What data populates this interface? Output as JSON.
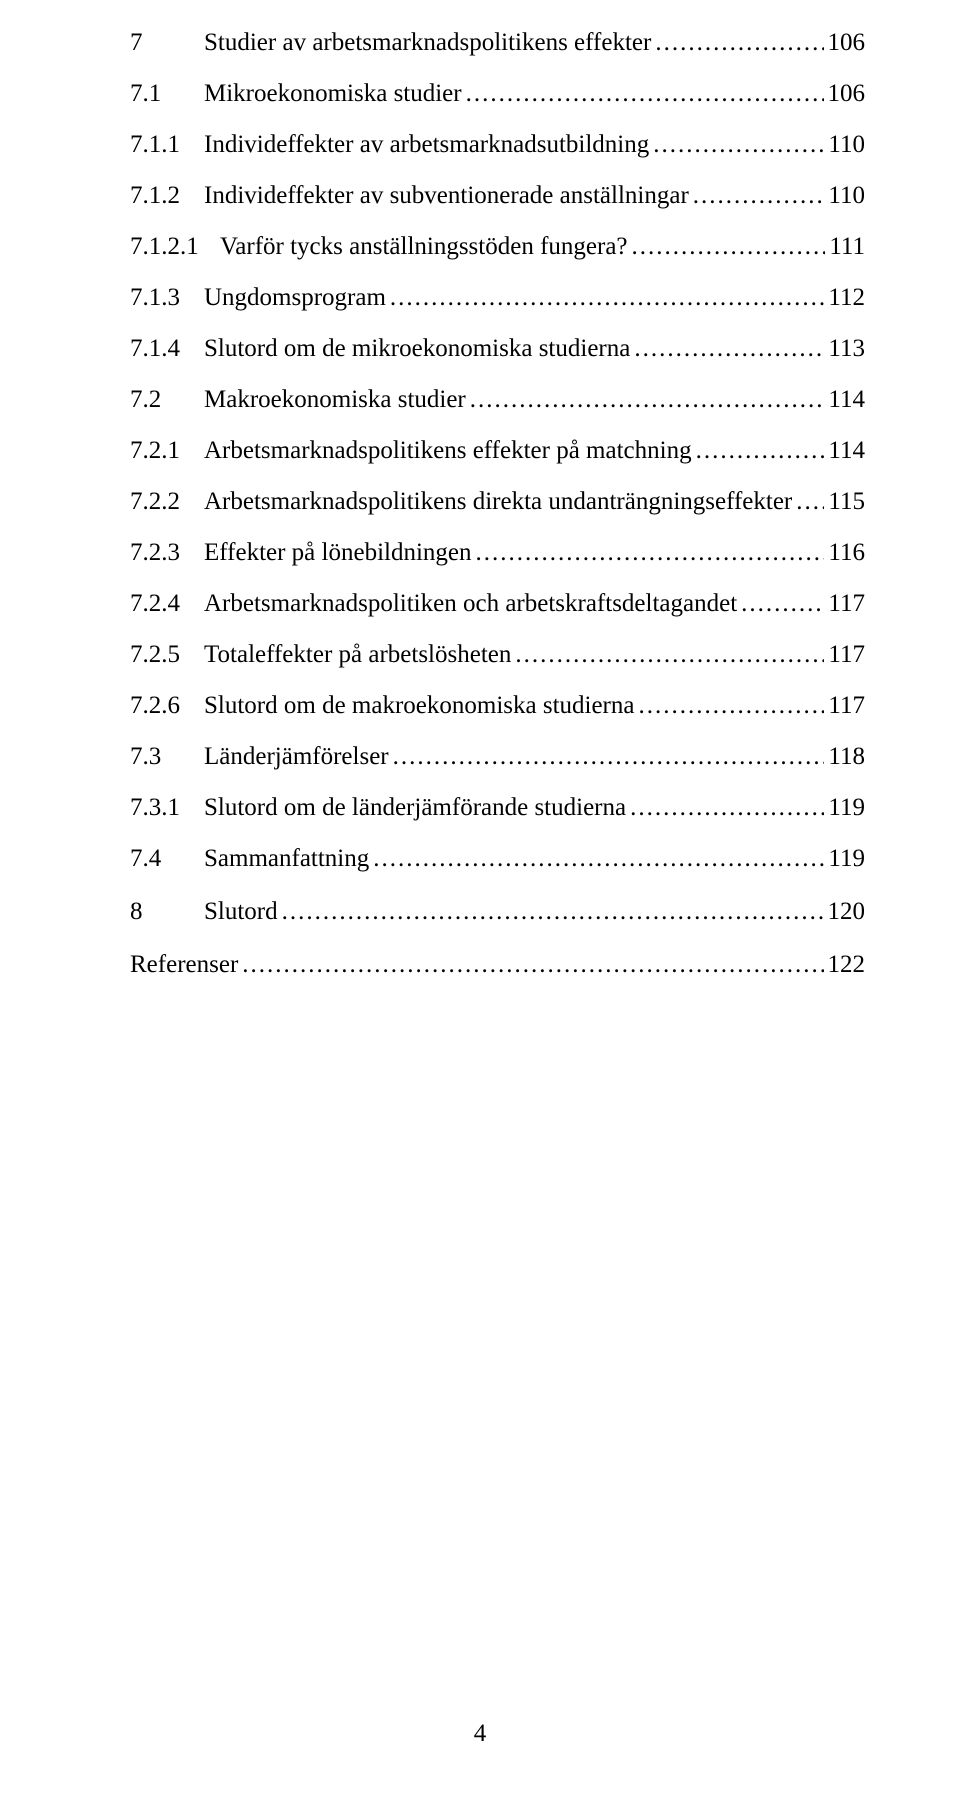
{
  "page_number": "4",
  "dot_char": ".",
  "toc": [
    {
      "num": "7",
      "title": "Studier av arbetsmarknadspolitikens effekter",
      "page": "106",
      "level": 0,
      "num_width": 68
    },
    {
      "num": "7.1",
      "title": "Mikroekonomiska studier",
      "page": "106",
      "level": 1,
      "num_width": 68
    },
    {
      "num": "7.1.1",
      "title": "Individeffekter av arbetsmarknadsutbildning",
      "page": "110",
      "level": 2,
      "num_width": 68
    },
    {
      "num": "7.1.2",
      "title": "Individeffekter av subventionerade anställningar",
      "page": "110",
      "level": 2,
      "num_width": 68
    },
    {
      "num": "7.1.2.1",
      "title": "Varför tycks anställningsstöden fungera?",
      "page": "111",
      "level": 3,
      "num_width": 88,
      "tight": true
    },
    {
      "num": "7.1.3",
      "title": "Ungdomsprogram",
      "page": "112",
      "level": 2,
      "num_width": 68
    },
    {
      "num": "7.1.4",
      "title": "Slutord om de mikroekonomiska studierna",
      "page": "113",
      "level": 2,
      "num_width": 68
    },
    {
      "num": "7.2",
      "title": "Makroekonomiska studier",
      "page": "114",
      "level": 1,
      "num_width": 68
    },
    {
      "num": "7.2.1",
      "title": "Arbetsmarknadspolitikens effekter på matchning",
      "page": "114",
      "level": 2,
      "num_width": 68
    },
    {
      "num": "7.2.2",
      "title": "Arbetsmarknadspolitikens direkta undanträngningseffekter",
      "page": "115",
      "level": 2,
      "num_width": 68
    },
    {
      "num": "7.2.3",
      "title": "Effekter på lönebildningen",
      "page": "116",
      "level": 2,
      "num_width": 68
    },
    {
      "num": "7.2.4",
      "title": "Arbetsmarknadspolitiken och arbetskraftsdeltagandet",
      "page": "117",
      "level": 2,
      "num_width": 68
    },
    {
      "num": "7.2.5",
      "title": "Totaleffekter på arbetslösheten",
      "page": "117",
      "level": 2,
      "num_width": 68
    },
    {
      "num": "7.2.6",
      "title": "Slutord om de makroekonomiska studierna",
      "page": "117",
      "level": 2,
      "num_width": 68
    },
    {
      "num": "7.3",
      "title": "Länderjämförelser",
      "page": "118",
      "level": 1,
      "num_width": 68
    },
    {
      "num": "7.3.1",
      "title": "Slutord om de länderjämförande studierna",
      "page": "119",
      "level": 2,
      "num_width": 68
    },
    {
      "num": "7.4",
      "title": "Sammanfattning",
      "page": "119",
      "level": 1,
      "num_width": 68
    },
    {
      "num": "8",
      "title": "Slutord",
      "page": "120",
      "level": 0,
      "num_width": 68,
      "gap_before": true
    },
    {
      "num": "",
      "title": "Referenser",
      "page": "122",
      "level": 0,
      "num_width": 0,
      "gap_before": true
    }
  ]
}
